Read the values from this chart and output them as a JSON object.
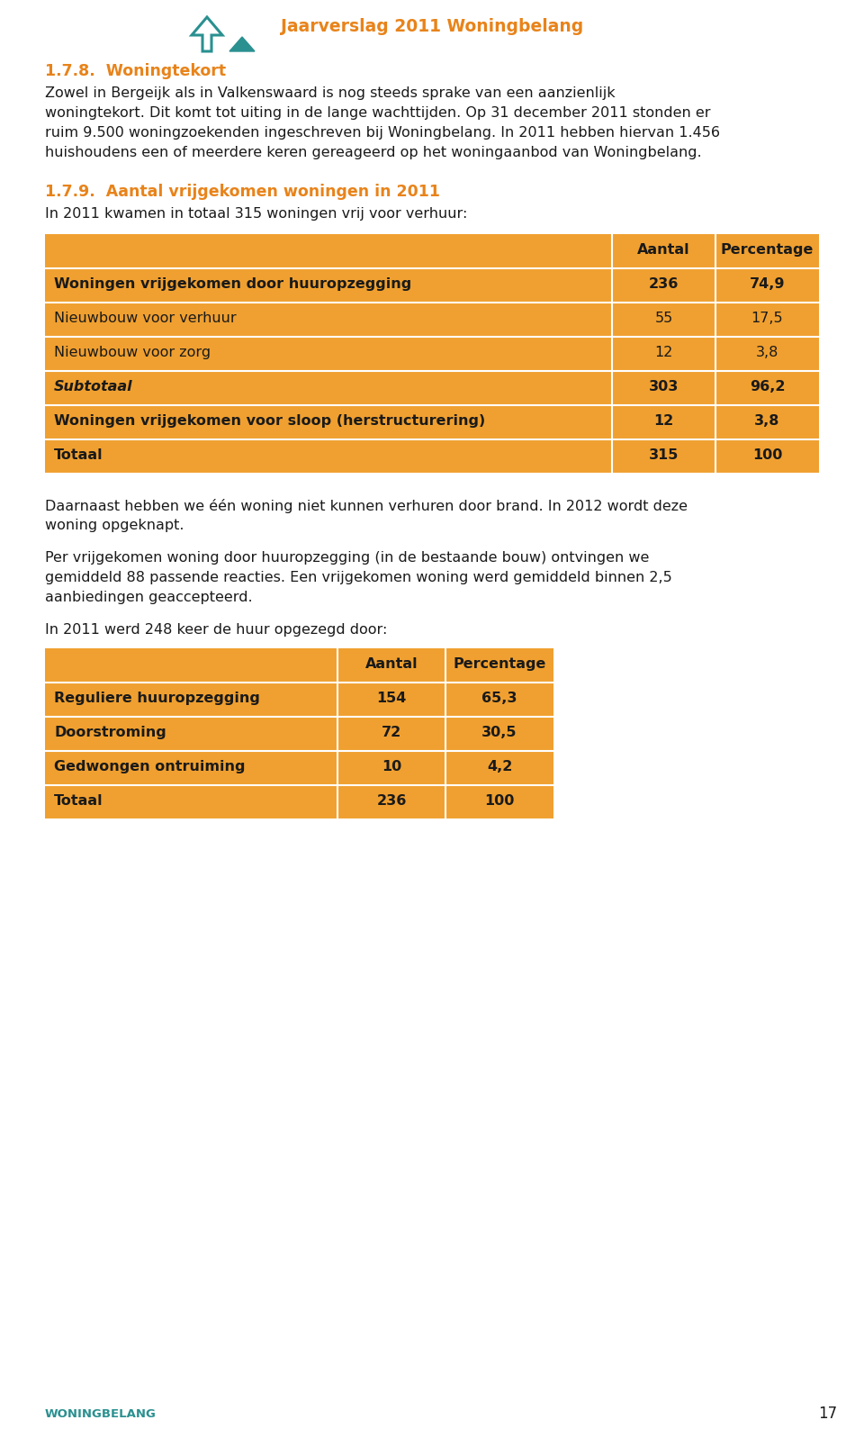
{
  "page_title": "Jaarverslag 2011 Woningbelang",
  "page_title_color": "#E8831A",
  "section_heading": "1.7.8.  Woningtekort",
  "section_heading_color": "#E8831A",
  "body_text_1_lines": [
    "Zowel in Bergeijk als in Valkenswaard is nog steeds sprake van een aanzienlijk",
    "woningtekort. Dit komt tot uiting in de lange wachttijden. Op 31 december 2011 stonden er",
    "ruim 9.500 woningzoekenden ingeschreven bij Woningbelang. In 2011 hebben hiervan 1.456",
    "huishoudens een of meerdere keren gereageerd op het woningaanbod van Woningbelang."
  ],
  "section_heading2": "1.7.9.  Aantal vrijgekomen woningen in 2011",
  "section_heading2_color": "#E8831A",
  "body_text_2": "In 2011 kwamen in totaal 315 woningen vrij voor verhuur:",
  "table1_header": [
    "",
    "Aantal",
    "Percentage"
  ],
  "table1_rows": [
    [
      "Woningen vrijgekomen door huuropzegging",
      "236",
      "74,9"
    ],
    [
      "Nieuwbouw voor verhuur",
      "55",
      "17,5"
    ],
    [
      "Nieuwbouw voor zorg",
      "12",
      "3,8"
    ],
    [
      "Subtotaal",
      "303",
      "96,2"
    ],
    [
      "Woningen vrijgekomen voor sloop (herstructurering)",
      "12",
      "3,8"
    ],
    [
      "Totaal",
      "315",
      "100"
    ]
  ],
  "table1_bold_rows": [
    0,
    3,
    4,
    5
  ],
  "table1_italic_rows": [
    3
  ],
  "body_text_3_lines": [
    "Daarnaast hebben we één woning niet kunnen verhuren door brand. In 2012 wordt deze",
    "woning opgeknapt."
  ],
  "body_text_4_lines": [
    "Per vrijgekomen woning door huuropzegging (in de bestaande bouw) ontvingen we",
    "gemiddeld 88 passende reacties. Een vrijgekomen woning werd gemiddeld binnen 2,5",
    "aanbiedingen geaccepteerd."
  ],
  "body_text_5": "In 2011 werd 248 keer de huur opgezegd door:",
  "table2_header": [
    "",
    "Aantal",
    "Percentage"
  ],
  "table2_rows": [
    [
      "Reguliere huuropzegging",
      "154",
      "65,3"
    ],
    [
      "Doorstroming",
      "72",
      "30,5"
    ],
    [
      "Gedwongen ontruiming",
      "10",
      "4,2"
    ],
    [
      "Totaal",
      "236",
      "100"
    ]
  ],
  "table2_bold_rows": [
    0,
    1,
    2,
    3
  ],
  "orange_color": "#F0A030",
  "white_color": "#FFFFFF",
  "text_color": "#1A1A1A",
  "page_number": "17",
  "footer_text": "WONINGBELANG",
  "footer_color": "#2A9090",
  "background_color": "#FFFFFF"
}
